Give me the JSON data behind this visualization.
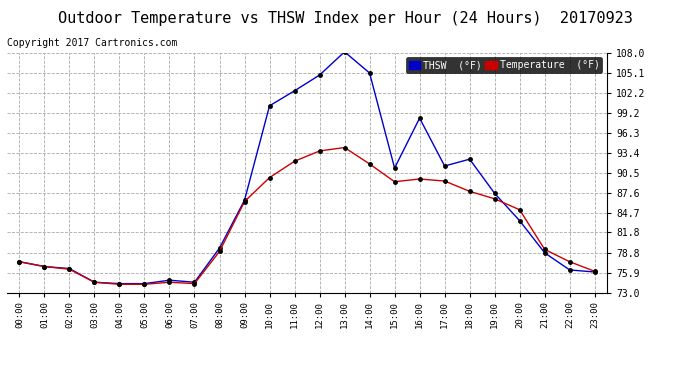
{
  "title": "Outdoor Temperature vs THSW Index per Hour (24 Hours)  20170923",
  "copyright": "Copyright 2017 Cartronics.com",
  "hours": [
    "00:00",
    "01:00",
    "02:00",
    "03:00",
    "04:00",
    "05:00",
    "06:00",
    "07:00",
    "08:00",
    "09:00",
    "10:00",
    "11:00",
    "12:00",
    "13:00",
    "14:00",
    "15:00",
    "16:00",
    "17:00",
    "18:00",
    "19:00",
    "20:00",
    "21:00",
    "22:00",
    "23:00"
  ],
  "thsw": [
    77.5,
    76.8,
    76.5,
    74.5,
    74.3,
    74.3,
    74.8,
    74.5,
    79.5,
    86.5,
    100.3,
    102.5,
    104.8,
    108.2,
    105.1,
    91.2,
    98.5,
    91.5,
    92.5,
    87.5,
    83.5,
    78.8,
    76.3,
    76.0
  ],
  "temperature": [
    77.5,
    76.8,
    76.4,
    74.5,
    74.2,
    74.2,
    74.5,
    74.3,
    79.0,
    86.3,
    89.8,
    92.2,
    93.7,
    94.2,
    91.8,
    89.2,
    89.6,
    89.3,
    87.8,
    86.7,
    85.1,
    79.3,
    77.5,
    76.1
  ],
  "thsw_color": "#0000cc",
  "temp_color": "#cc0000",
  "bg_color": "#ffffff",
  "grid_color": "#aaaaaa",
  "ylim_min": 73.0,
  "ylim_max": 108.1,
  "yticks": [
    73.0,
    75.9,
    78.8,
    81.8,
    84.7,
    87.6,
    90.5,
    93.4,
    96.3,
    99.2,
    102.2,
    105.1,
    108.0
  ],
  "title_fontsize": 11,
  "copyright_fontsize": 7,
  "legend_thsw_label": "THSW  (°F)",
  "legend_temp_label": "Temperature  (°F)"
}
